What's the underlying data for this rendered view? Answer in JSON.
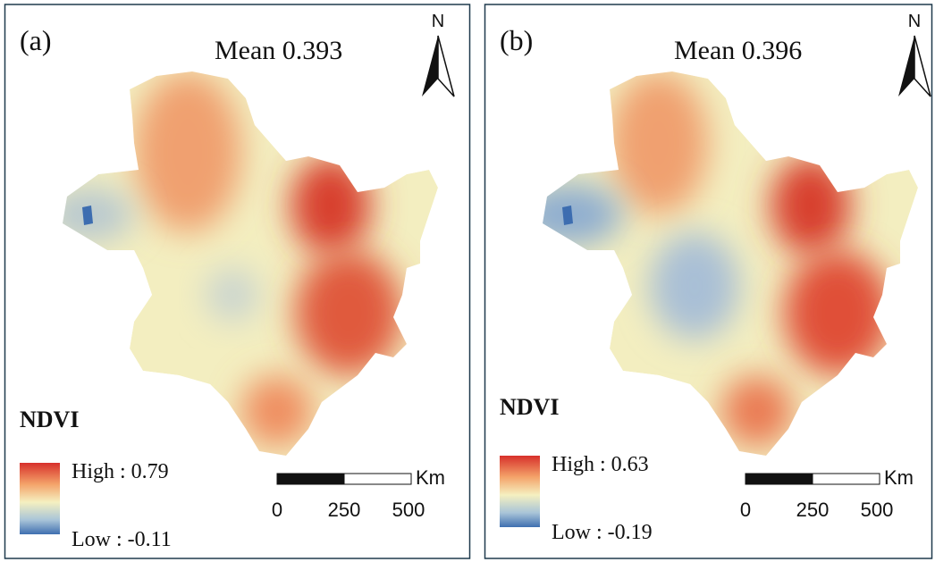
{
  "panels": [
    {
      "label": "(a)",
      "mean": "Mean 0.393",
      "north": "N",
      "legend": {
        "title": "NDVI",
        "high": "High : 0.79",
        "low": "Low : -0.11"
      },
      "scalebar": {
        "unit": "Km",
        "ticks": [
          "0",
          "250",
          "500"
        ]
      }
    },
    {
      "label": "(b)",
      "mean": "Mean 0.396",
      "north": "N",
      "legend": {
        "title": "NDVI",
        "high": "High : 0.63",
        "low": "Low : -0.19"
      },
      "scalebar": {
        "unit": "Km",
        "ticks": [
          "0",
          "250",
          "500"
        ]
      }
    }
  ]
}
